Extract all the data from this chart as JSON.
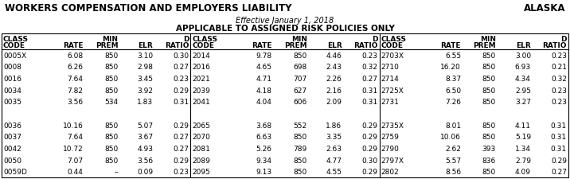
{
  "title_left": "WORKERS COMPENSATION AND EMPLOYERS LIABILITY",
  "title_right": "ALASKA",
  "subtitle1": "Effective January 1, 2018",
  "subtitle2": "APPLICABLE TO ASSIGNED RISK POLICIES ONLY",
  "col_headers_line1": [
    "CLASS",
    "",
    "MIN",
    "",
    "D"
  ],
  "col_headers_line2": [
    "CODE",
    "RATE",
    "PREM",
    "ELR",
    "RATIO"
  ],
  "data_col1": [
    [
      "0005X",
      "6.08",
      "850",
      "3.10",
      "0.30"
    ],
    [
      "0008",
      "6.26",
      "850",
      "2.98",
      "0.27"
    ],
    [
      "0016",
      "7.64",
      "850",
      "3.45",
      "0.23"
    ],
    [
      "0034",
      "7.82",
      "850",
      "3.92",
      "0.29"
    ],
    [
      "0035",
      "3.56",
      "534",
      "1.83",
      "0.31"
    ],
    [
      "",
      "",
      "",
      "",
      ""
    ],
    [
      "0036",
      "10.16",
      "850",
      "5.07",
      "0.29"
    ],
    [
      "0037",
      "7.64",
      "850",
      "3.67",
      "0.27"
    ],
    [
      "0042",
      "10.72",
      "850",
      "4.93",
      "0.27"
    ],
    [
      "0050",
      "7.07",
      "850",
      "3.56",
      "0.29"
    ],
    [
      "0059D",
      "0.44",
      "–",
      "0.09",
      "0.23"
    ]
  ],
  "data_col2": [
    [
      "2014",
      "9.78",
      "850",
      "4.46",
      "0.23"
    ],
    [
      "2016",
      "4.65",
      "698",
      "2.43",
      "0.32"
    ],
    [
      "2021",
      "4.71",
      "707",
      "2.26",
      "0.27"
    ],
    [
      "2039",
      "4.18",
      "627",
      "2.16",
      "0.31"
    ],
    [
      "2041",
      "4.04",
      "606",
      "2.09",
      "0.31"
    ],
    [
      "",
      "",
      "",
      "",
      ""
    ],
    [
      "2065",
      "3.68",
      "552",
      "1.86",
      "0.29"
    ],
    [
      "2070",
      "6.63",
      "850",
      "3.35",
      "0.29"
    ],
    [
      "2081",
      "5.26",
      "789",
      "2.63",
      "0.29"
    ],
    [
      "2089",
      "9.34",
      "850",
      "4.77",
      "0.30"
    ],
    [
      "2095",
      "9.13",
      "850",
      "4.55",
      "0.29"
    ]
  ],
  "data_col3": [
    [
      "2703X",
      "6.55",
      "850",
      "3.00",
      "0.23"
    ],
    [
      "2710",
      "16.20",
      "850",
      "6.93",
      "0.21"
    ],
    [
      "2714",
      "8.37",
      "850",
      "4.34",
      "0.32"
    ],
    [
      "2725X",
      "6.50",
      "850",
      "2.95",
      "0.23"
    ],
    [
      "2731",
      "7.26",
      "850",
      "3.27",
      "0.23"
    ],
    [
      "",
      "",
      "",
      "",
      ""
    ],
    [
      "2735X",
      "8.01",
      "850",
      "4.11",
      "0.31"
    ],
    [
      "2759",
      "10.06",
      "850",
      "5.19",
      "0.31"
    ],
    [
      "2790",
      "2.62",
      "393",
      "1.34",
      "0.31"
    ],
    [
      "2797X",
      "5.57",
      "836",
      "2.79",
      "0.29"
    ],
    [
      "2802",
      "8.56",
      "850",
      "4.09",
      "0.27"
    ]
  ],
  "background_color": "#ffffff",
  "border_color": "#000000",
  "text_color": "#000000",
  "title_fontsize": 8.5,
  "header_fontsize": 6.5,
  "data_fontsize": 6.5,
  "subtitle1_fontsize": 7.0,
  "subtitle2_fontsize": 7.5
}
